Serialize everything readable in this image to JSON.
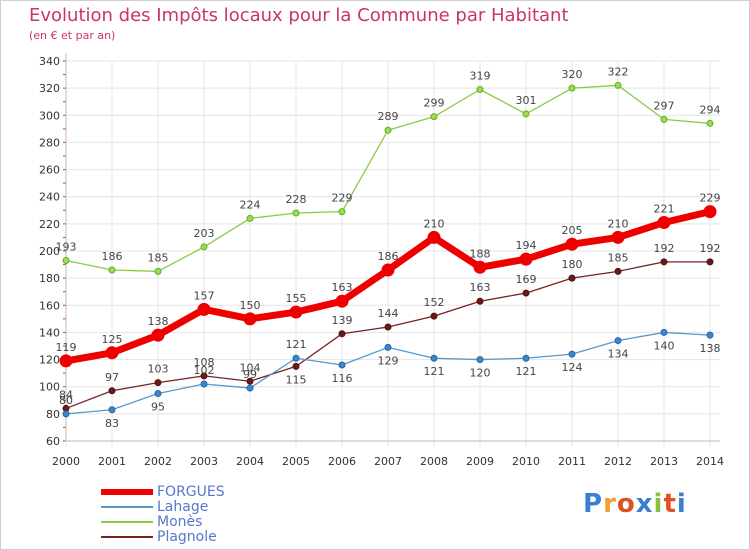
{
  "header": {
    "title": "Evolution des Impôts locaux pour la Commune par Habitant",
    "subtitle": "(en € et par an)"
  },
  "brand": {
    "letters": [
      "P",
      "r",
      "o",
      "x",
      "i",
      "t",
      "i"
    ],
    "colors": [
      "#3a7fd0",
      "#f0a030",
      "#e05020",
      "#3a7fd0",
      "#88c040",
      "#e05020",
      "#3a7fd0"
    ]
  },
  "chart_data": {
    "type": "line",
    "title": "Evolution des Impôts locaux pour la Commune par Habitant",
    "subtitle": "(en € et par an)",
    "xlabel": "",
    "ylabel": "",
    "x": [
      "2000",
      "2001",
      "2002",
      "2003",
      "2004",
      "2005",
      "2006",
      "2007",
      "2008",
      "2009",
      "2010",
      "2011",
      "2012",
      "2013",
      "2014"
    ],
    "ylim": [
      60,
      340
    ],
    "yticks": [
      60,
      80,
      100,
      120,
      140,
      160,
      180,
      200,
      220,
      240,
      260,
      280,
      300,
      320,
      340
    ],
    "grid": true,
    "legend_position": "bottom-left",
    "series": [
      {
        "name": "FORGUES",
        "color": "#ee0000",
        "values": [
          119,
          125,
          138,
          157,
          150,
          155,
          163,
          186,
          210,
          188,
          194,
          205,
          210,
          221,
          229
        ]
      },
      {
        "name": "Lahage",
        "color": "#5599cc",
        "values": [
          80,
          83,
          95,
          102,
          99,
          121,
          116,
          129,
          121,
          120,
          121,
          124,
          134,
          140,
          138
        ]
      },
      {
        "name": "Monès",
        "color": "#88cc44",
        "values": [
          193,
          186,
          185,
          203,
          224,
          228,
          229,
          289,
          299,
          319,
          301,
          320,
          322,
          297,
          294
        ]
      },
      {
        "name": "Plagnole",
        "color": "#772222",
        "values": [
          84,
          97,
          103,
          108,
          104,
          115,
          139,
          144,
          152,
          163,
          169,
          180,
          185,
          192,
          192
        ]
      }
    ]
  }
}
